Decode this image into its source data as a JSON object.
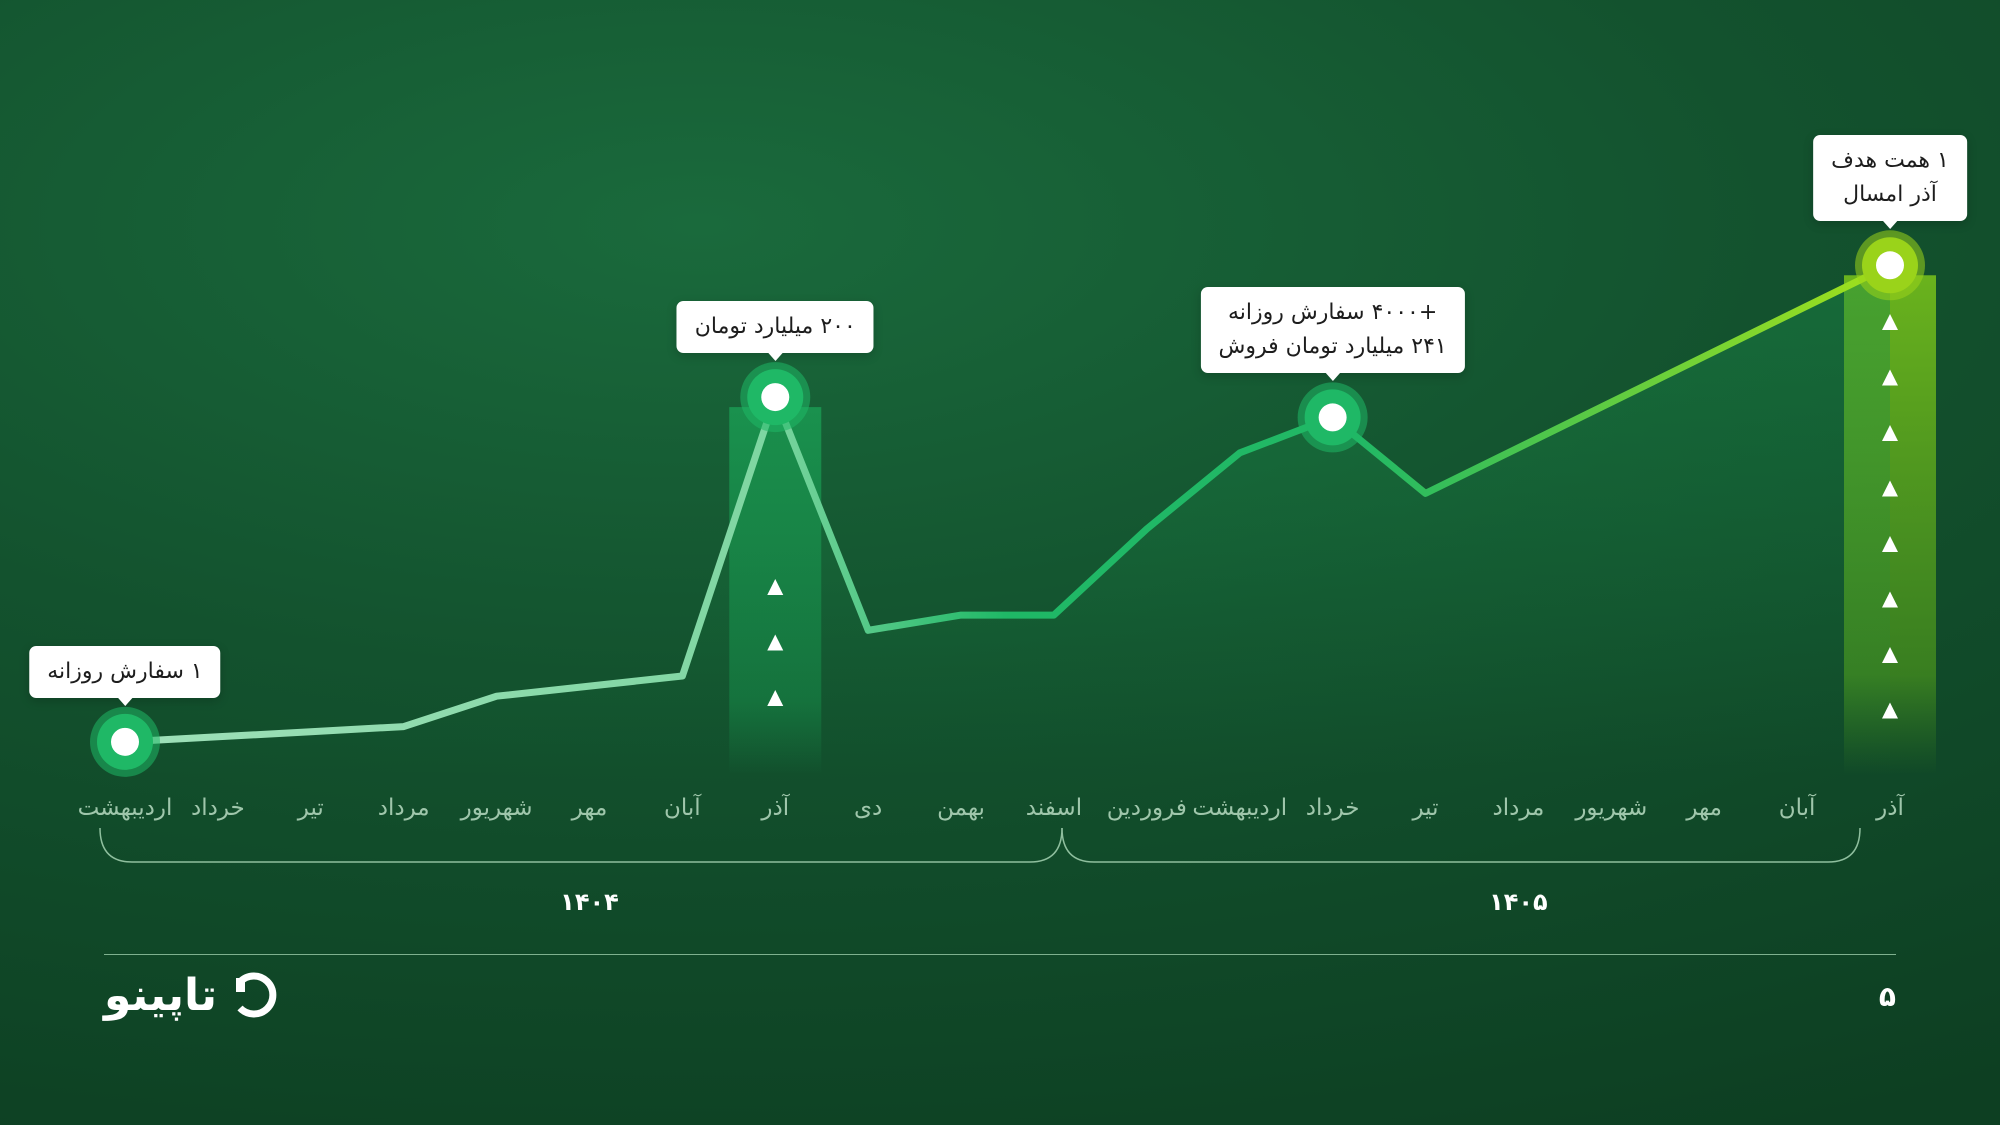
{
  "chart_data": {
    "type": "line",
    "title": "",
    "xlabel": "",
    "ylabel": "",
    "grid": false,
    "categories": [
      "اردیبهشت",
      "خرداد",
      "تیر",
      "مرداد",
      "شهریور",
      "مهر",
      "آبان",
      "آذر",
      "دی",
      "بهمن",
      "اسفند",
      "فروردین",
      "اردیبهشت",
      "خرداد",
      "تیر",
      "مرداد",
      "شهریور",
      "مهر",
      "آبان",
      "آذر"
    ],
    "category_years": [
      "۱۴۰۴",
      "۱۴۰۴",
      "۱۴۰۴",
      "۱۴۰۴",
      "۱۴۰۴",
      "۱۴۰۴",
      "۱۴۰۴",
      "۱۴۰۴",
      "۱۴۰۴",
      "۱۴۰۴",
      "۱۴۰۴",
      "۱۴۰۵",
      "۱۴۰۵",
      "۱۴۰۵",
      "۱۴۰۵",
      "۱۴۰۵",
      "۱۴۰۵",
      "۱۴۰۵",
      "۱۴۰۵",
      "۱۴۰۵"
    ],
    "series": [
      {
        "values": [
          2,
          3,
          4,
          5,
          11,
          13,
          15,
          70,
          24,
          27,
          27,
          44,
          59,
          66,
          51,
          60,
          69,
          78,
          87,
          96
        ]
      }
    ],
    "ylim": [
      0,
      100
    ],
    "year_groups": [
      {
        "label": "۱۴۰۴",
        "from": 0,
        "to": 10
      },
      {
        "label": "۱۴۰۵",
        "from": 11,
        "to": 19
      }
    ],
    "milestones": [
      {
        "index": 0,
        "lines": [
          "۱ سفارش روزانه"
        ],
        "color": "#1fb866",
        "bar": false
      },
      {
        "index": 7,
        "lines": [
          "۲۰۰ میلیارد تومان"
        ],
        "color": "#1fb866",
        "bar": true,
        "arrows": 3
      },
      {
        "index": 13,
        "lines": [
          "+۴۰۰۰ سفارش روزانه",
          "۲۴۱ میلیارد تومان فروش"
        ],
        "color": "#1fb866",
        "bar": false
      },
      {
        "index": 19,
        "lines": [
          "۱ همت هدف",
          "آذر امسال"
        ],
        "color": "#9ad31a",
        "bar": true,
        "arrows": 8
      }
    ],
    "colors": {
      "line_start": "#9fe0b9",
      "line_mid": "#1fb866",
      "line_end": "#a3e11a"
    }
  },
  "footer": {
    "brand": "تاپینو",
    "page_number": "۵"
  }
}
